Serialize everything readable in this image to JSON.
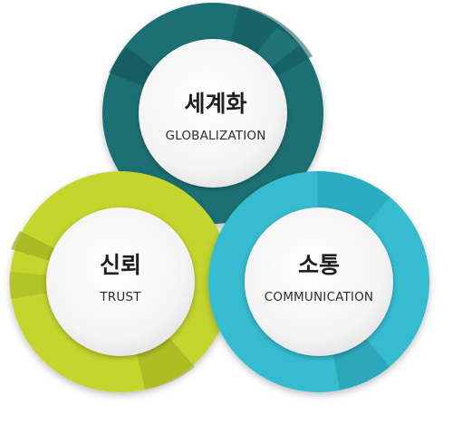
{
  "circles": {
    "globalization": {
      "title": "세계화",
      "subtitle": "GLOBALIZATION",
      "color": "#1a6f73"
    },
    "trust": {
      "title": "신뢰",
      "subtitle": "TRUST",
      "color": "#c4d52f"
    },
    "communication": {
      "title": "소통",
      "subtitle": "COMMUNICATION",
      "color": "#35bcd1"
    }
  }
}
